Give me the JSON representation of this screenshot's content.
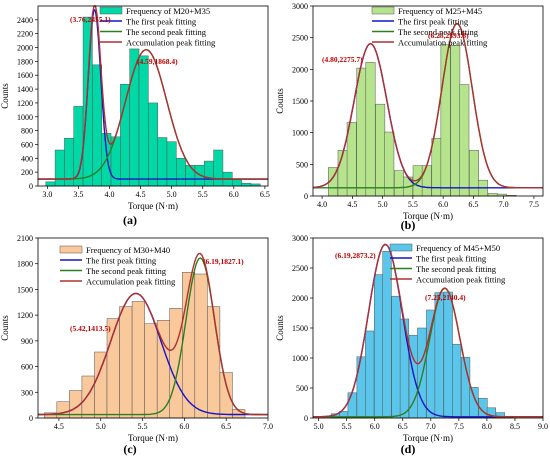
{
  "chart_data": [
    {
      "type": "bar",
      "panel_label": "(a)",
      "xlabel": "Torque (N·m)",
      "ylabel": "Counts",
      "xlim": [
        2.85,
        6.55
      ],
      "ylim": [
        0,
        2600
      ],
      "xticks": [
        "3.0",
        "3.5",
        "4.0",
        "4.5",
        "5.0",
        "5.5",
        "6.0",
        "6.5"
      ],
      "yticks": [
        "0",
        "200",
        "400",
        "600",
        "800",
        "1000",
        "1200",
        "1400",
        "1600",
        "1800",
        "2000",
        "2200",
        "2400"
      ],
      "bin_width": 0.15,
      "bars": {
        "x": [
          3.05,
          3.2,
          3.35,
          3.5,
          3.65,
          3.8,
          3.95,
          4.1,
          4.25,
          4.4,
          4.55,
          4.7,
          4.85,
          5.0,
          5.15,
          5.3,
          5.45,
          5.6,
          5.75,
          5.9,
          6.05,
          6.2,
          6.35
        ],
        "values": [
          60,
          520,
          690,
          1150,
          2440,
          1750,
          760,
          710,
          1470,
          1980,
          1880,
          1200,
          700,
          640,
          400,
          300,
          300,
          360,
          520,
          200,
          90,
          40,
          30
        ]
      },
      "curves": {
        "first_peak": {
          "mu": 3.76,
          "height": 2455.1,
          "sigma": 0.1
        },
        "second_peak": {
          "mu": 4.59,
          "height": 1868.4,
          "sigma": 0.33
        },
        "baseline": 100
      },
      "series_names": [
        "Frequency of M20+M35",
        "The first peak fitting",
        "The second peak fitting",
        "Accumulation peak fitting"
      ],
      "annotations": [
        "(3.76,2455.1)",
        "(4.59,1868.4)"
      ],
      "colors": {
        "bar": "#00d9a6",
        "first": "#1515c8",
        "second": "#2e7d1f",
        "accum": "#b03030"
      }
    },
    {
      "type": "bar",
      "panel_label": "(b)",
      "xlabel": "Torque (N·m)",
      "ylabel": "Counts",
      "xlim": [
        3.85,
        7.65
      ],
      "ylim": [
        0,
        3000
      ],
      "xticks": [
        "4.0",
        "4.5",
        "5.0",
        "5.5",
        "6.0",
        "6.5",
        "7.0",
        "7.5"
      ],
      "yticks": [
        "0",
        "500",
        "1000",
        "1500",
        "2000",
        "2500",
        "3000"
      ],
      "bin_width": 0.155,
      "bars": {
        "x": [
          4.18,
          4.34,
          4.49,
          4.65,
          4.8,
          4.96,
          5.11,
          5.27,
          5.42,
          5.58,
          5.73,
          5.89,
          6.04,
          6.2,
          6.35,
          6.51,
          6.66,
          6.82,
          6.97,
          7.13
        ],
        "values": [
          450,
          720,
          1160,
          2020,
          2110,
          1450,
          1010,
          400,
          300,
          480,
          480,
          910,
          2390,
          2380,
          1760,
          720,
          250,
          40,
          30,
          10
        ]
      },
      "curves": {
        "first_peak": {
          "mu": 4.8,
          "height": 2275.7,
          "sigma": 0.27
        },
        "second_peak": {
          "mu": 6.23,
          "height": 2593.8,
          "sigma": 0.25
        },
        "baseline": 130
      },
      "series_names": [
        "Frequency of M25+M45",
        "The first peak fitting",
        "The second peak fitting",
        "Accumulation peak fitting"
      ],
      "annotations": [
        "(4.80,2275.7)",
        "(6.23,2593.8)"
      ],
      "colors": {
        "bar": "#b5e48c",
        "first": "#1515c8",
        "second": "#2e7d1f",
        "accum": "#b03030"
      }
    },
    {
      "type": "bar",
      "panel_label": "(c)",
      "xlabel": "Torque (N·m)",
      "ylabel": "Counts",
      "xlim": [
        4.25,
        7.0
      ],
      "ylim": [
        0,
        2100
      ],
      "xticks": [
        "4.5",
        "5.0",
        "5.5",
        "6.0",
        "6.5",
        "7.0"
      ],
      "yticks": [
        "0",
        "300",
        "600",
        "900",
        "1200",
        "1500",
        "1800",
        "2100"
      ],
      "bin_width": 0.15,
      "bars": {
        "x": [
          4.4,
          4.55,
          4.7,
          4.85,
          5.0,
          5.15,
          5.3,
          5.45,
          5.6,
          5.75,
          5.9,
          6.05,
          6.2,
          6.35,
          6.5,
          6.65
        ],
        "values": [
          60,
          190,
          320,
          490,
          770,
          1160,
          1300,
          1360,
          1100,
          1140,
          1280,
          1700,
          1680,
          1300,
          530,
          100
        ]
      },
      "curves": {
        "first_peak": {
          "mu": 5.42,
          "height": 1413.5,
          "sigma": 0.3
        },
        "second_peak": {
          "mu": 6.19,
          "height": 1827.1,
          "sigma": 0.17
        },
        "baseline": 40
      },
      "series_names": [
        "Frequency of M30+M40",
        "The first peak fitting",
        "The second peak fitting",
        "Accumulation peak fitting"
      ],
      "annotations": [
        "(5.42,1413.5)",
        "(6.19,1827.1)"
      ],
      "colors": {
        "bar": "#f9c89b",
        "first": "#1515c8",
        "second": "#2e7d1f",
        "accum": "#b03030"
      }
    },
    {
      "type": "bar",
      "panel_label": "(d)",
      "xlabel": "Torque (N·m)",
      "ylabel": "Counts",
      "xlim": [
        4.9,
        9.0
      ],
      "ylim": [
        0,
        3000
      ],
      "xticks": [
        "5.0",
        "5.5",
        "6.0",
        "6.5",
        "7.0",
        "7.5",
        "8.0",
        "8.5",
        "9.0"
      ],
      "yticks": [
        "0",
        "500",
        "1000",
        "1500",
        "2000",
        "2500",
        "3000"
      ],
      "bin_width": 0.155,
      "bars": {
        "x": [
          5.3,
          5.45,
          5.6,
          5.76,
          5.91,
          6.07,
          6.22,
          6.38,
          6.53,
          6.69,
          6.84,
          7.0,
          7.15,
          7.31,
          7.46,
          7.62,
          7.77,
          7.93,
          8.08,
          8.24,
          8.39
        ],
        "values": [
          70,
          110,
          420,
          1020,
          1450,
          2390,
          2780,
          2030,
          1650,
          1380,
          1500,
          1800,
          2090,
          2100,
          1230,
          1010,
          510,
          330,
          170,
          90,
          30
        ]
      },
      "curves": {
        "first_peak": {
          "mu": 6.19,
          "height": 2873.2,
          "sigma": 0.3
        },
        "second_peak": {
          "mu": 7.25,
          "height": 2140.4,
          "sigma": 0.27
        },
        "baseline": 20
      },
      "series_names": [
        "Frequency of M45+M50",
        "The first peak fitting",
        "The second peak fitting",
        "Accumulation peak fitting"
      ],
      "annotations": [
        "(6.19,2873.2)",
        "(7.25,2140.4)"
      ],
      "colors": {
        "bar": "#5bc6ec",
        "first": "#1515c8",
        "second": "#2e7d1f",
        "accum": "#b03030"
      }
    }
  ]
}
